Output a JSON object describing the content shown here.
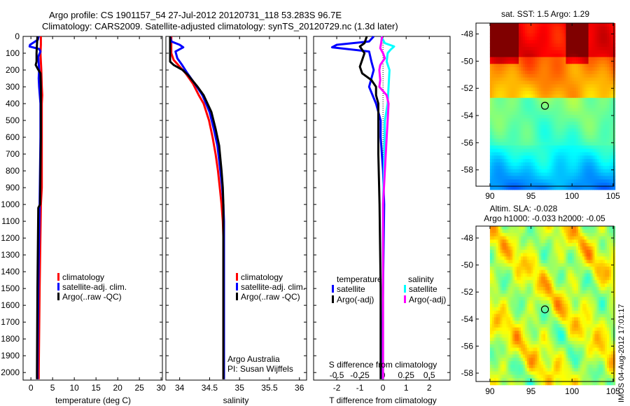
{
  "title": {
    "line1": "Argo profile: CS 1901157_54 27-Jul-2012 20120731_118 53.283S 96.7E",
    "line2": "Climatology: CARS2009. Satellite-adjusted climatology: synTS_20120729.nc (1.3d later)"
  },
  "credits": {
    "institution": "Argo Australia",
    "pi": "PI: Susan Wijffels",
    "stamp": "IMOS 04-Aug-2012 17:01:17"
  },
  "colors": {
    "climatology": "#ff0000",
    "satellite": "#0000ff",
    "argo": "#000000",
    "sal_satellite": "#00ffff",
    "sal_argo": "#ff00ff"
  },
  "chart_data": [
    {
      "type": "line",
      "id": "temperature",
      "xlabel": "temperature (deg C)",
      "xlim": [
        -1.8,
        30.3
      ],
      "ylim": [
        0,
        2045
      ],
      "y_reversed": true,
      "xticks": [
        0,
        5,
        10,
        15,
        20,
        25,
        30
      ],
      "yticks": [
        0,
        100,
        200,
        300,
        400,
        500,
        600,
        700,
        800,
        900,
        1000,
        1100,
        1200,
        1300,
        1400,
        1500,
        1600,
        1700,
        1800,
        1900,
        2000
      ],
      "legend": [
        "climatology",
        "satellite-adj. clim.",
        "Argo(..raw -QC)"
      ],
      "series": [
        {
          "name": "climatology",
          "color": "#ff0000",
          "depth": [
            0,
            50,
            100,
            200,
            300,
            350,
            400,
            600,
            900,
            1000,
            1500,
            2000,
            2040
          ],
          "values": [
            2.3,
            2.3,
            2.2,
            2.4,
            2.5,
            2.6,
            2.5,
            2.5,
            2.5,
            2.3,
            2.0,
            1.8,
            1.8
          ]
        },
        {
          "name": "satellite-adj. clim.",
          "color": "#0000ff",
          "depth": [
            0,
            20,
            50,
            60,
            75,
            90,
            120,
            200,
            250,
            300,
            400,
            600,
            1000,
            1500,
            2000,
            2040
          ],
          "values": [
            1.8,
            1.6,
            -0.2,
            -0.3,
            1.9,
            2.2,
            1.7,
            1.9,
            1.8,
            1.9,
            2.2,
            2.2,
            2.0,
            1.7,
            1.5,
            1.5
          ]
        },
        {
          "name": "Argo(..raw -QC)",
          "color": "#000000",
          "depth": [
            0,
            50,
            100,
            150,
            170,
            190,
            220,
            300,
            400,
            600,
            1000,
            1020,
            1500,
            2000,
            2040
          ],
          "values": [
            1.5,
            1.4,
            1.3,
            1.3,
            1.1,
            1.5,
            2.2,
            2.3,
            2.3,
            2.3,
            2.1,
            1.7,
            1.5,
            1.4,
            1.4
          ]
        }
      ]
    },
    {
      "type": "line",
      "id": "salinity",
      "xlabel": "salinity",
      "xlim": [
        33.77,
        36.12
      ],
      "ylim": [
        0,
        2045
      ],
      "y_reversed": true,
      "xticks": [
        "34",
        "34.5",
        "35",
        "35.5",
        "36"
      ],
      "legend": [
        "climatology",
        "satellite-adj. clim.",
        "Argo(..raw -QC)"
      ],
      "series": [
        {
          "name": "climatology",
          "color": "#ff0000",
          "depth": [
            0,
            100,
            140,
            180,
            220,
            280,
            350,
            400,
            500,
            600,
            700,
            800,
            900,
            1000,
            1100,
            1200,
            2040
          ],
          "values": [
            33.86,
            33.86,
            33.9,
            34.0,
            34.1,
            34.22,
            34.32,
            34.4,
            34.49,
            34.55,
            34.6,
            34.64,
            34.67,
            34.7,
            34.72,
            34.73,
            34.73
          ]
        },
        {
          "name": "satellite-adj. clim.",
          "color": "#0000ff",
          "depth": [
            0,
            30,
            50,
            65,
            90,
            130,
            170,
            220,
            280,
            350,
            450,
            550,
            650,
            800,
            900,
            1000,
            1100,
            1200,
            2040
          ],
          "values": [
            33.84,
            33.86,
            34.0,
            34.06,
            33.93,
            33.96,
            34.04,
            34.13,
            34.25,
            34.38,
            34.5,
            34.57,
            34.63,
            34.68,
            34.71,
            34.73,
            34.74,
            34.74,
            34.74
          ]
        },
        {
          "name": "Argo(..raw -QC)",
          "color": "#000000",
          "depth": [
            0,
            150,
            170,
            200,
            230,
            300,
            350,
            450,
            550,
            650,
            800,
            900,
            1000,
            1100,
            2040
          ],
          "values": [
            33.84,
            33.84,
            33.9,
            34.05,
            34.14,
            34.3,
            34.4,
            34.53,
            34.6,
            34.66,
            34.7,
            34.72,
            34.73,
            34.73,
            34.73
          ]
        }
      ]
    },
    {
      "type": "line",
      "id": "difference",
      "xlabel": "T difference from climatology",
      "x2label": "S difference from climatology",
      "xlim": [
        -3,
        2.9
      ],
      "ylim": [
        0,
        2045
      ],
      "y_reversed": true,
      "xticks": [
        -2,
        -1,
        0,
        1,
        2
      ],
      "x2ticks": [
        "-0.5",
        "-0.25",
        "0",
        "0.25",
        "0.5"
      ],
      "legend": {
        "temperature_header": "temperature",
        "salinity_header": "salinity",
        "t_sat": "satellite",
        "t_argo": "Argo(-adj)",
        "s_sat": "satellite",
        "s_argo": "Argo(-adj)"
      },
      "series": [
        {
          "name": "T satellite",
          "color": "#0000ff",
          "depth": [
            0,
            30,
            50,
            65,
            90,
            150,
            200,
            300,
            400,
            450,
            500,
            600,
            800,
            1000,
            1500,
            2000,
            2040
          ],
          "values": [
            -0.4,
            -0.6,
            -2.0,
            -2.2,
            -0.6,
            -0.5,
            -0.4,
            -0.6,
            -0.3,
            -0.2,
            -0.1,
            -0.1,
            0.0,
            0.05,
            0.0,
            -0.05,
            -0.05
          ]
        },
        {
          "name": "T Argo(-adj)",
          "color": "#000000",
          "depth": [
            0,
            40,
            60,
            100,
            140,
            180,
            220,
            260,
            300,
            350,
            400,
            500,
            700,
            1000,
            1500,
            2000,
            2040
          ],
          "values": [
            -0.7,
            -0.8,
            -1.0,
            -0.8,
            -0.9,
            -1.0,
            -0.9,
            -0.5,
            -0.3,
            -0.3,
            -0.2,
            -0.2,
            -0.2,
            -0.15,
            -0.1,
            -0.1,
            -0.1
          ]
        },
        {
          "name": "S satellite",
          "color": "#00ffff",
          "depth": [
            0,
            40,
            60,
            80,
            100,
            150,
            200,
            300,
            400,
            500,
            800,
            1000,
            1500,
            2000,
            2040
          ],
          "values": [
            -0.02,
            0.02,
            0.12,
            0.08,
            0.05,
            0.04,
            0.07,
            0.06,
            0.05,
            0.02,
            0.01,
            0.0,
            0.0,
            0.0,
            0.0
          ]
        },
        {
          "name": "S Argo(-adj)",
          "color": "#ff00ff",
          "depth": [
            0,
            40,
            70,
            100,
            130,
            170,
            200,
            260,
            300,
            350,
            400,
            500,
            600,
            800,
            1000,
            1500,
            2000,
            2040
          ],
          "values": [
            -0.01,
            -0.02,
            -0.03,
            0.0,
            0.02,
            -0.03,
            -0.04,
            -0.03,
            -0.04,
            0.04,
            0.06,
            0.05,
            0.04,
            0.02,
            0.0,
            0.0,
            0.0,
            0.0
          ]
        }
      ]
    },
    {
      "type": "heatmap",
      "id": "sst-map",
      "title": "sat. SST: 1.5 Argo: 1.29",
      "xlim": [
        88.3,
        105.1
      ],
      "ylim": [
        -59.2,
        -47.2
      ],
      "xticks": [
        90,
        95,
        100,
        105
      ],
      "yticks": [
        -48,
        -50,
        -52,
        -54,
        -56,
        -58
      ],
      "argo_position": {
        "lon": 96.7,
        "lat": -53.283
      }
    },
    {
      "type": "heatmap",
      "id": "sla-map",
      "title": "Altim. SLA: -0.028",
      "subtitle": "Argo h1000: -0.033 h2000: -0.05",
      "xlim": [
        88.3,
        105.1
      ],
      "ylim": [
        -58.62,
        -47.12
      ],
      "xticks": [
        90,
        95,
        100,
        105
      ],
      "yticks": [
        -48,
        -50,
        -52,
        -54,
        -56,
        -58
      ],
      "argo_position": {
        "lon": 96.7,
        "lat": -53.283
      }
    }
  ]
}
